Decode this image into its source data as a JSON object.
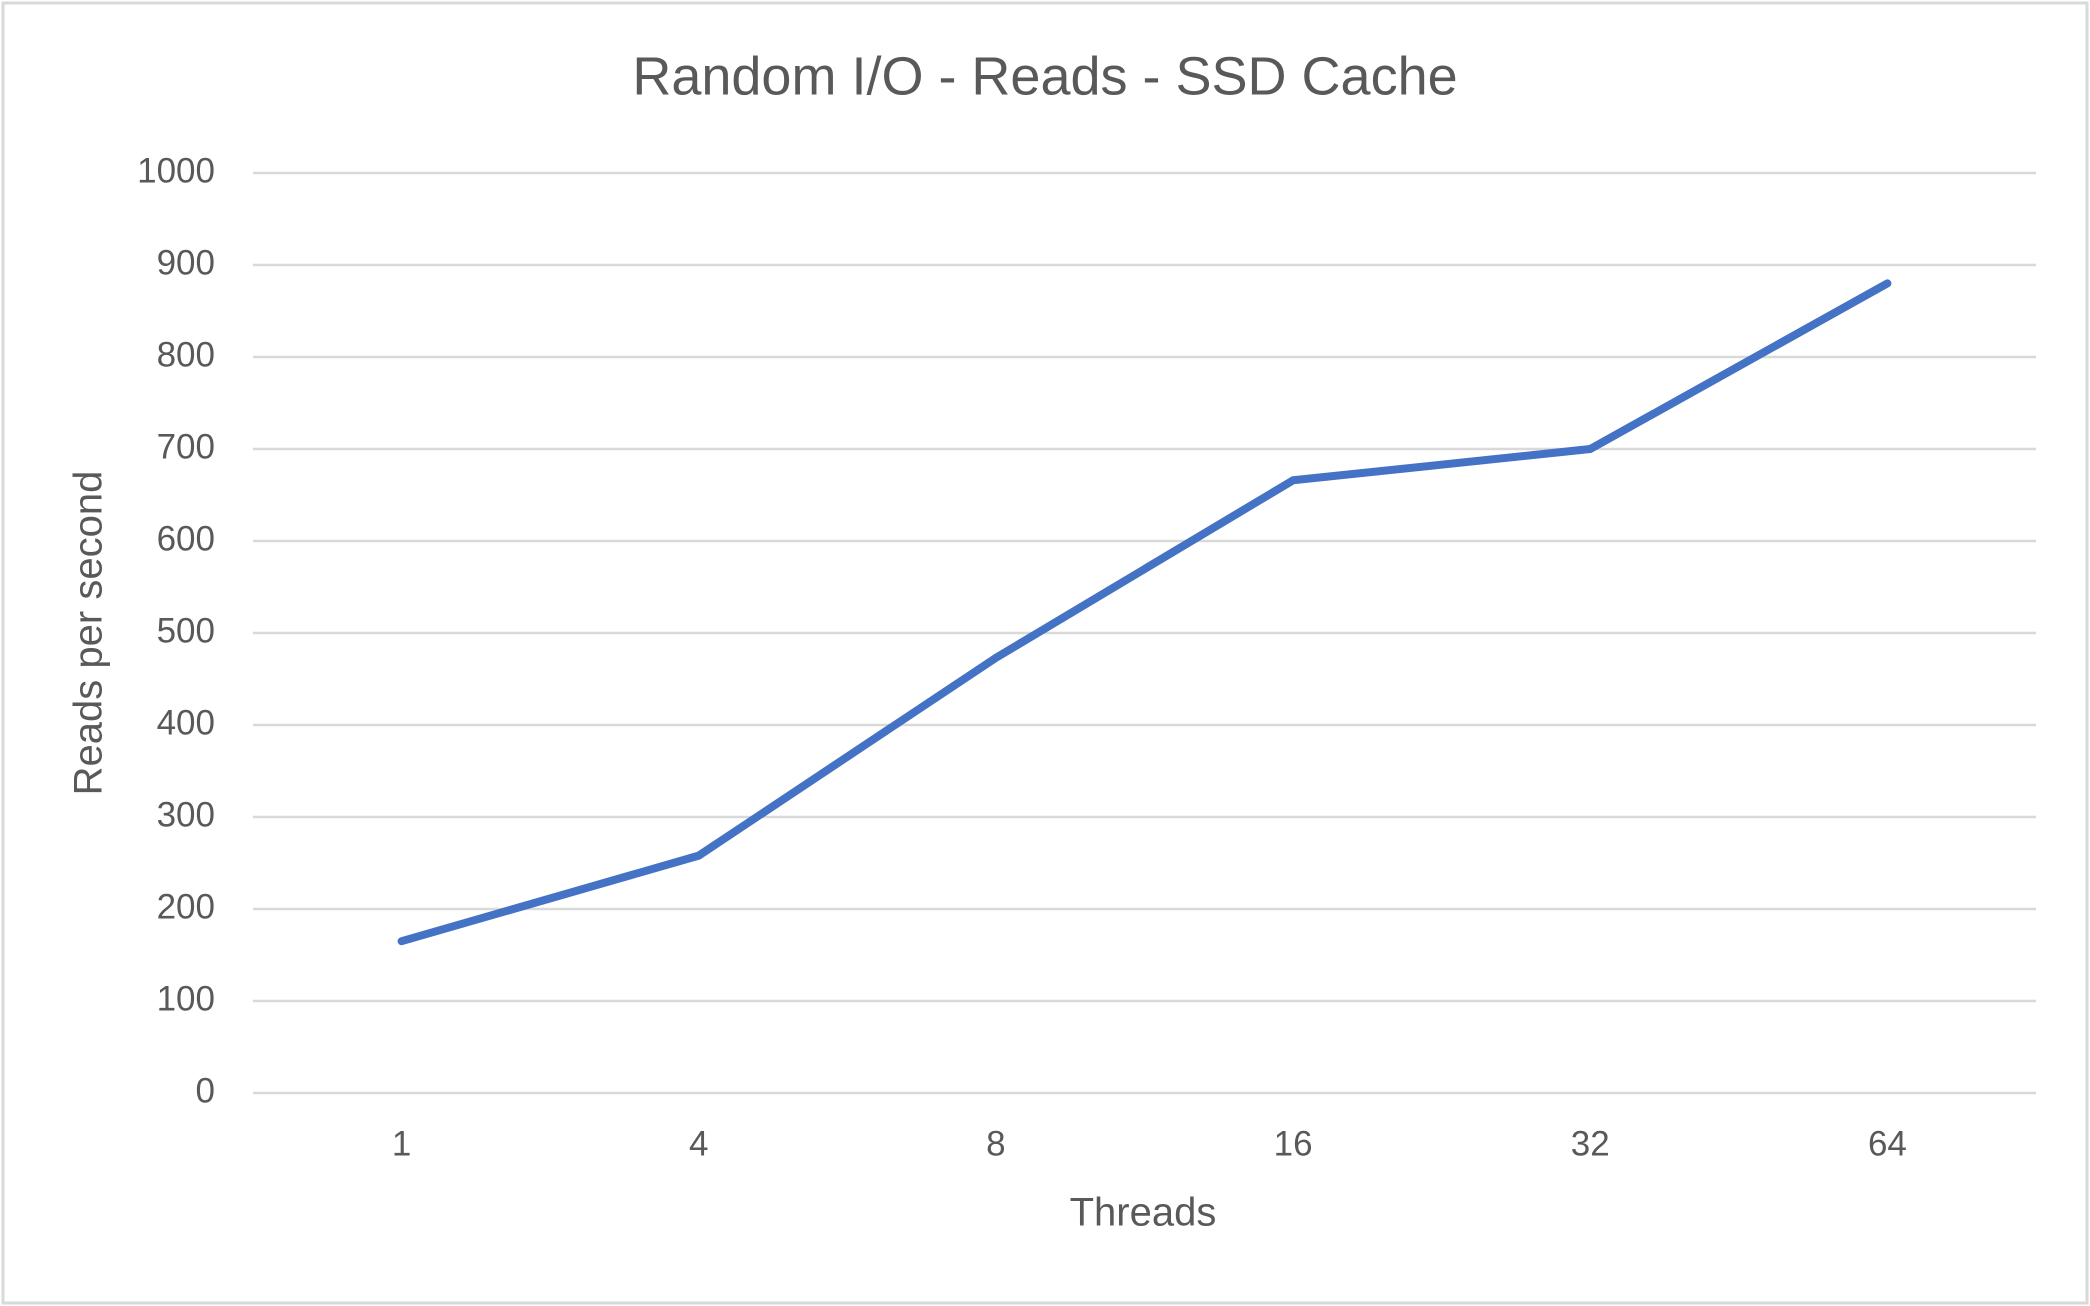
{
  "chart_data": {
    "type": "line",
    "title": "Random I/O - Reads - SSD Cache",
    "x_label": "Threads",
    "y_label": "Reads per second",
    "categories": [
      "1",
      "4",
      "8",
      "16",
      "32",
      "64"
    ],
    "series": [
      {
        "name": "Reads per second",
        "color": "#4472c4",
        "values": [
          165,
          258,
          473,
          666,
          700,
          880
        ]
      }
    ],
    "ylim": [
      0,
      1000
    ],
    "yticks": [
      0,
      100,
      200,
      300,
      400,
      500,
      600,
      700,
      800,
      900,
      1000
    ],
    "grid": true
  }
}
